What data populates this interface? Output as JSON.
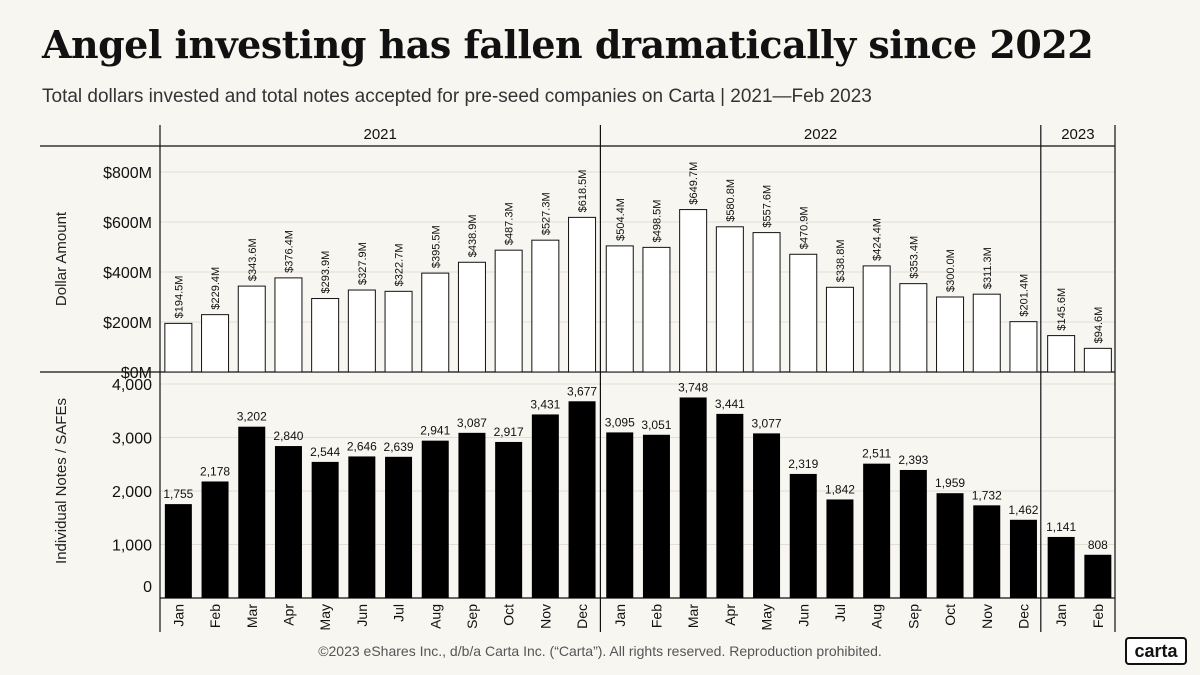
{
  "header": {
    "title": "Angel investing has fallen dramatically since 2022",
    "subtitle": "Total dollars invested and total notes accepted for pre-seed companies on Carta | 2021—Feb 2023"
  },
  "footer": {
    "copyright": "©2023 eShares Inc., d/b/a Carta Inc. (“Carta”). All rights reserved. Reproduction prohibited.",
    "logo_text": "carta"
  },
  "chart_data": [
    {
      "type": "bar",
      "year_groups": [
        {
          "label": "2021",
          "months": 12
        },
        {
          "label": "2022",
          "months": 12
        },
        {
          "label": "2023",
          "months": 2
        }
      ],
      "categories": [
        "Jan",
        "Feb",
        "Mar",
        "Apr",
        "May",
        "Jun",
        "Jul",
        "Aug",
        "Sep",
        "Oct",
        "Nov",
        "Dec",
        "Jan",
        "Feb",
        "Mar",
        "Apr",
        "May",
        "Jun",
        "Jul",
        "Aug",
        "Sep",
        "Oct",
        "Nov",
        "Dec",
        "Jan",
        "Feb"
      ],
      "ylabel": "Dollar Amount",
      "ylim": [
        0,
        800
      ],
      "yticks": [
        0,
        200,
        400,
        600,
        800
      ],
      "ytick_labels": [
        "$0M",
        "$200M",
        "$400M",
        "$600M",
        "$800M"
      ],
      "values": [
        194.5,
        229.4,
        343.6,
        376.4,
        293.9,
        327.9,
        322.7,
        395.5,
        438.9,
        487.3,
        527.3,
        618.5,
        504.4,
        498.5,
        649.7,
        580.8,
        557.6,
        470.9,
        338.8,
        424.4,
        353.4,
        300.0,
        311.3,
        201.4,
        145.6,
        94.6
      ],
      "data_labels": [
        "$194.5M",
        "$229.4M",
        "$343.6M",
        "$376.4M",
        "$293.9M",
        "$327.9M",
        "$322.7M",
        "$395.5M",
        "$438.9M",
        "$487.3M",
        "$527.3M",
        "$618.5M",
        "$504.4M",
        "$498.5M",
        "$649.7M",
        "$580.8M",
        "$557.6M",
        "$470.9M",
        "$338.8M",
        "$424.4M",
        "$353.4M",
        "$300.0M",
        "$311.3M",
        "$201.4M",
        "$145.6M",
        "$94.6M"
      ],
      "bar_fill": "#ffffff",
      "bar_stroke": "#111111"
    },
    {
      "type": "bar",
      "categories": [
        "Jan",
        "Feb",
        "Mar",
        "Apr",
        "May",
        "Jun",
        "Jul",
        "Aug",
        "Sep",
        "Oct",
        "Nov",
        "Dec",
        "Jan",
        "Feb",
        "Mar",
        "Apr",
        "May",
        "Jun",
        "Jul",
        "Aug",
        "Sep",
        "Oct",
        "Nov",
        "Dec",
        "Jan",
        "Feb"
      ],
      "ylabel": "Individual Notes / SAFEs",
      "ylim": [
        0,
        4000
      ],
      "yticks": [
        0,
        1000,
        2000,
        3000,
        4000
      ],
      "ytick_labels": [
        "0",
        "1,000",
        "2,000",
        "3,000",
        "4,000"
      ],
      "values": [
        1755,
        2178,
        3202,
        2840,
        2544,
        2646,
        2639,
        2941,
        3087,
        2917,
        3431,
        3677,
        3095,
        3051,
        3748,
        3441,
        3077,
        2319,
        1842,
        2511,
        2393,
        1959,
        1732,
        1462,
        1141,
        808
      ],
      "data_labels": [
        "1,755",
        "2,178",
        "3,202",
        "2,840",
        "2,544",
        "2,646",
        "2,639",
        "2,941",
        "3,087",
        "2,917",
        "3,431",
        "3,677",
        "3,095",
        "3,051",
        "3,748",
        "3,441",
        "3,077",
        "2,319",
        "1,842",
        "2,511",
        "2,393",
        "1,959",
        "1,732",
        "1,462",
        "1,141",
        "808"
      ],
      "bar_fill": "#000000"
    }
  ]
}
